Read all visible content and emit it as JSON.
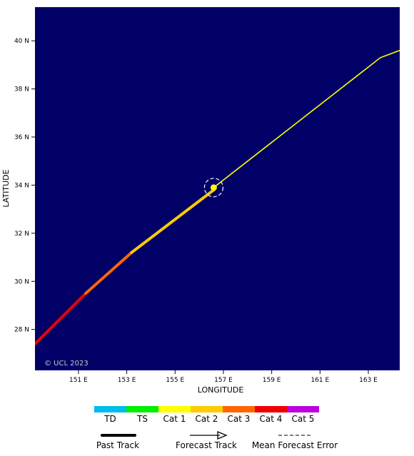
{
  "map": {
    "background_color": "#000066",
    "x_axis": {
      "label": "LONGITUDE",
      "range": [
        149.2,
        164.3
      ],
      "ticks": [
        {
          "value": 151,
          "label": "151 E"
        },
        {
          "value": 153,
          "label": "153 E"
        },
        {
          "value": 155,
          "label": "155 E"
        },
        {
          "value": 157,
          "label": "157 E"
        },
        {
          "value": 159,
          "label": "159 E"
        },
        {
          "value": 161,
          "label": "161 E"
        },
        {
          "value": 163,
          "label": "163 E"
        }
      ]
    },
    "y_axis": {
      "label": "LATITUDE",
      "range": [
        26.3,
        41.4
      ],
      "ticks": [
        {
          "value": 28,
          "label": "28 N"
        },
        {
          "value": 30,
          "label": "30 N"
        },
        {
          "value": 32,
          "label": "32 N"
        },
        {
          "value": 34,
          "label": "34 N"
        },
        {
          "value": 36,
          "label": "36 N"
        },
        {
          "value": 38,
          "label": "38 N"
        },
        {
          "value": 40,
          "label": "40 N"
        }
      ]
    },
    "copyright": "© UCL 2023",
    "past_track": [
      {
        "from": [
          149.2,
          27.4
        ],
        "to": [
          151.3,
          29.5
        ],
        "category": "Cat 4"
      },
      {
        "from": [
          151.3,
          29.5
        ],
        "to": [
          153.2,
          31.2
        ],
        "category": "Cat 3"
      },
      {
        "from": [
          153.2,
          31.2
        ],
        "to": [
          156.6,
          33.8
        ],
        "category": "Cat 2"
      }
    ],
    "current_position": {
      "lon": 156.6,
      "lat": 33.9,
      "category": "Cat 1"
    },
    "forecast_track": {
      "category": "Cat 1",
      "points": [
        [
          156.6,
          33.9
        ],
        [
          163.5,
          39.3
        ],
        [
          164.3,
          39.6
        ]
      ]
    }
  },
  "legend": {
    "categories": [
      {
        "name": "TD",
        "color": "#00bbee"
      },
      {
        "name": "TS",
        "color": "#00ee00"
      },
      {
        "name": "Cat 1",
        "color": "#ffff00"
      },
      {
        "name": "Cat 2",
        "color": "#ffcc00"
      },
      {
        "name": "Cat 3",
        "color": "#ff6600"
      },
      {
        "name": "Cat 4",
        "color": "#ee0000"
      },
      {
        "name": "Cat 5",
        "color": "#bb00dd"
      }
    ],
    "past_track_label": "Past Track",
    "forecast_track_label": "Forecast Track",
    "mean_error_label": "Mean Forecast Error"
  }
}
